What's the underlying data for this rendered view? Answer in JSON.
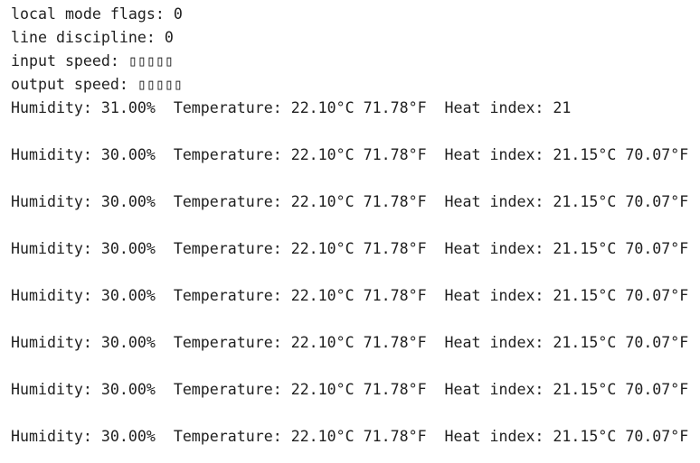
{
  "console": {
    "lines": [
      "local mode flags: 0",
      "line discipline: 0",
      "input speed: ▯▯▯▯▯",
      "output speed: ▯▯▯▯▯",
      "Humidity: 31.00%  Temperature: 22.10°C 71.78°F  Heat index: 21",
      "",
      "Humidity: 30.00%  Temperature: 22.10°C 71.78°F  Heat index: 21.15°C 70.07°F",
      "",
      "Humidity: 30.00%  Temperature: 22.10°C 71.78°F  Heat index: 21.15°C 70.07°F",
      "",
      "Humidity: 30.00%  Temperature: 22.10°C 71.78°F  Heat index: 21.15°C 70.07°F",
      "",
      "Humidity: 30.00%  Temperature: 22.10°C 71.78°F  Heat index: 21.15°C 70.07°F",
      "",
      "Humidity: 30.00%  Temperature: 22.10°C 71.78°F  Heat index: 21.15°C 70.07°F",
      "",
      "Humidity: 30.00%  Temperature: 22.10°C 71.78°F  Heat index: 21.15°C 70.07°F",
      "",
      "Humidity: 30.00%  Temperature: 22.10°C 71.78°F  Heat index: 21.15°C 70.07°F"
    ]
  }
}
